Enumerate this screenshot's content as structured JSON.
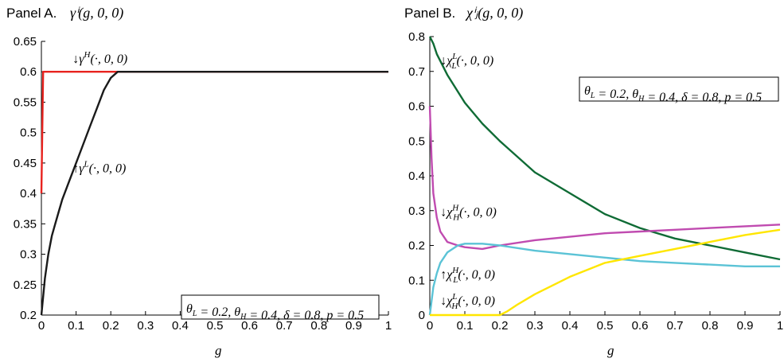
{
  "chart_data": [
    {
      "type": "line",
      "panel_label": "Panel A.",
      "title_math": "γⁱ(g, 0, 0)",
      "xlabel": "g",
      "ylabel": "",
      "xlim": [
        0,
        1
      ],
      "ylim": [
        0.2,
        0.65
      ],
      "x_ticks": [
        "0",
        "0.1",
        "0.2",
        "0.3",
        "0.4",
        "0.5",
        "0.6",
        "0.7",
        "0.8",
        "0.9",
        "1"
      ],
      "y_ticks": [
        "0.2",
        "0.25",
        "0.3",
        "0.35",
        "0.4",
        "0.45",
        "0.5",
        "0.55",
        "0.6",
        "0.65"
      ],
      "grid": false,
      "series": [
        {
          "name": "↓γ^H(·,0,0)",
          "color": "#e8231f",
          "x": [
            0,
            0.005,
            0.01,
            0.02,
            0.04,
            0.06,
            0.08,
            0.1,
            0.15,
            0.2,
            0.3,
            0.4,
            0.5,
            0.6,
            0.7,
            0.8,
            0.9,
            1.0
          ],
          "values": [
            0.4,
            0.6,
            0.6,
            0.6,
            0.6,
            0.6,
            0.6,
            0.6,
            0.6,
            0.6,
            0.6,
            0.6,
            0.6,
            0.6,
            0.6,
            0.6,
            0.6,
            0.6
          ]
        },
        {
          "name": "↑γ^L(·,0,0)",
          "color": "#1a1a1a",
          "x": [
            0,
            0.005,
            0.01,
            0.02,
            0.03,
            0.04,
            0.05,
            0.06,
            0.08,
            0.1,
            0.12,
            0.14,
            0.16,
            0.18,
            0.2,
            0.22,
            0.25,
            0.3,
            0.4,
            0.5,
            0.6,
            0.7,
            0.8,
            0.9,
            1.0
          ],
          "values": [
            0.2,
            0.23,
            0.26,
            0.3,
            0.33,
            0.35,
            0.37,
            0.39,
            0.42,
            0.45,
            0.48,
            0.51,
            0.54,
            0.57,
            0.59,
            0.6,
            0.6,
            0.6,
            0.6,
            0.6,
            0.6,
            0.6,
            0.6,
            0.6,
            0.6
          ]
        }
      ],
      "annotations": [
        {
          "text": "↓γ^H(·, 0, 0)",
          "x": 0.09,
          "y": 0.615
        },
        {
          "text": "↑γ^L(·, 0, 0)",
          "x": 0.09,
          "y": 0.435
        }
      ],
      "param_box": "θ_L = 0.2, θ_H = 0.4, δ = 0.8, p = 0.5"
    },
    {
      "type": "line",
      "panel_label": "Panel B.",
      "title_math": "χⁱⱼ(g, 0, 0)",
      "xlabel": "g",
      "ylabel": "",
      "xlim": [
        0,
        1
      ],
      "ylim": [
        0,
        0.8
      ],
      "x_ticks": [
        "0",
        "0.1",
        "0.2",
        "0.3",
        "0.4",
        "0.5",
        "0.6",
        "0.7",
        "0.8",
        "0.9",
        "1"
      ],
      "y_ticks": [
        "0",
        "0.1",
        "0.2",
        "0.3",
        "0.4",
        "0.5",
        "0.6",
        "0.7",
        "0.8"
      ],
      "grid": false,
      "series": [
        {
          "name": "↓χ^L_L(·,0,0)",
          "color": "#0f6b35",
          "x": [
            0,
            0.01,
            0.02,
            0.05,
            0.1,
            0.15,
            0.2,
            0.3,
            0.4,
            0.5,
            0.6,
            0.7,
            0.8,
            0.9,
            1.0
          ],
          "values": [
            0.8,
            0.78,
            0.75,
            0.69,
            0.61,
            0.55,
            0.5,
            0.41,
            0.35,
            0.29,
            0.25,
            0.22,
            0.2,
            0.18,
            0.16
          ]
        },
        {
          "name": "↓χ^H_H(·,0,0)",
          "color": "#c04bb0",
          "x": [
            0,
            0.005,
            0.01,
            0.02,
            0.03,
            0.05,
            0.08,
            0.1,
            0.15,
            0.2,
            0.3,
            0.4,
            0.5,
            0.6,
            0.7,
            0.8,
            0.9,
            1.0
          ],
          "values": [
            0.6,
            0.45,
            0.35,
            0.28,
            0.24,
            0.21,
            0.2,
            0.195,
            0.19,
            0.2,
            0.215,
            0.225,
            0.235,
            0.24,
            0.245,
            0.25,
            0.255,
            0.26
          ]
        },
        {
          "name": "↑χ^H_L(·,0,0)",
          "color": "#5bc3d6",
          "x": [
            0,
            0.01,
            0.02,
            0.03,
            0.05,
            0.08,
            0.1,
            0.15,
            0.2,
            0.3,
            0.4,
            0.5,
            0.6,
            0.7,
            0.8,
            0.9,
            1.0
          ],
          "values": [
            0.0,
            0.08,
            0.12,
            0.15,
            0.18,
            0.2,
            0.205,
            0.205,
            0.2,
            0.185,
            0.175,
            0.165,
            0.155,
            0.15,
            0.145,
            0.14,
            0.14
          ]
        },
        {
          "name": "↓χ^L_H(·,0,0)",
          "color": "#ffe600",
          "x": [
            0,
            0.1,
            0.2,
            0.22,
            0.25,
            0.3,
            0.4,
            0.5,
            0.6,
            0.7,
            0.8,
            0.9,
            1.0
          ],
          "values": [
            0.0,
            0.0,
            0.0,
            0.01,
            0.03,
            0.06,
            0.11,
            0.15,
            0.17,
            0.19,
            0.21,
            0.23,
            0.245
          ]
        }
      ],
      "annotations": [
        {
          "text": "↓χ^L_L(·, 0, 0)",
          "x": 0.03,
          "y": 0.72
        },
        {
          "text": "↓χ^H_H(·, 0, 0)",
          "x": 0.03,
          "y": 0.285
        },
        {
          "text": "↑χ^H_L(·, 0, 0)",
          "x": 0.03,
          "y": 0.105
        },
        {
          "text": "↓χ^L_H(·, 0, 0)",
          "x": 0.03,
          "y": 0.03
        }
      ],
      "param_box": "θ_L = 0.2, θ_H = 0.4, δ = 0.8, p = 0.5"
    }
  ]
}
